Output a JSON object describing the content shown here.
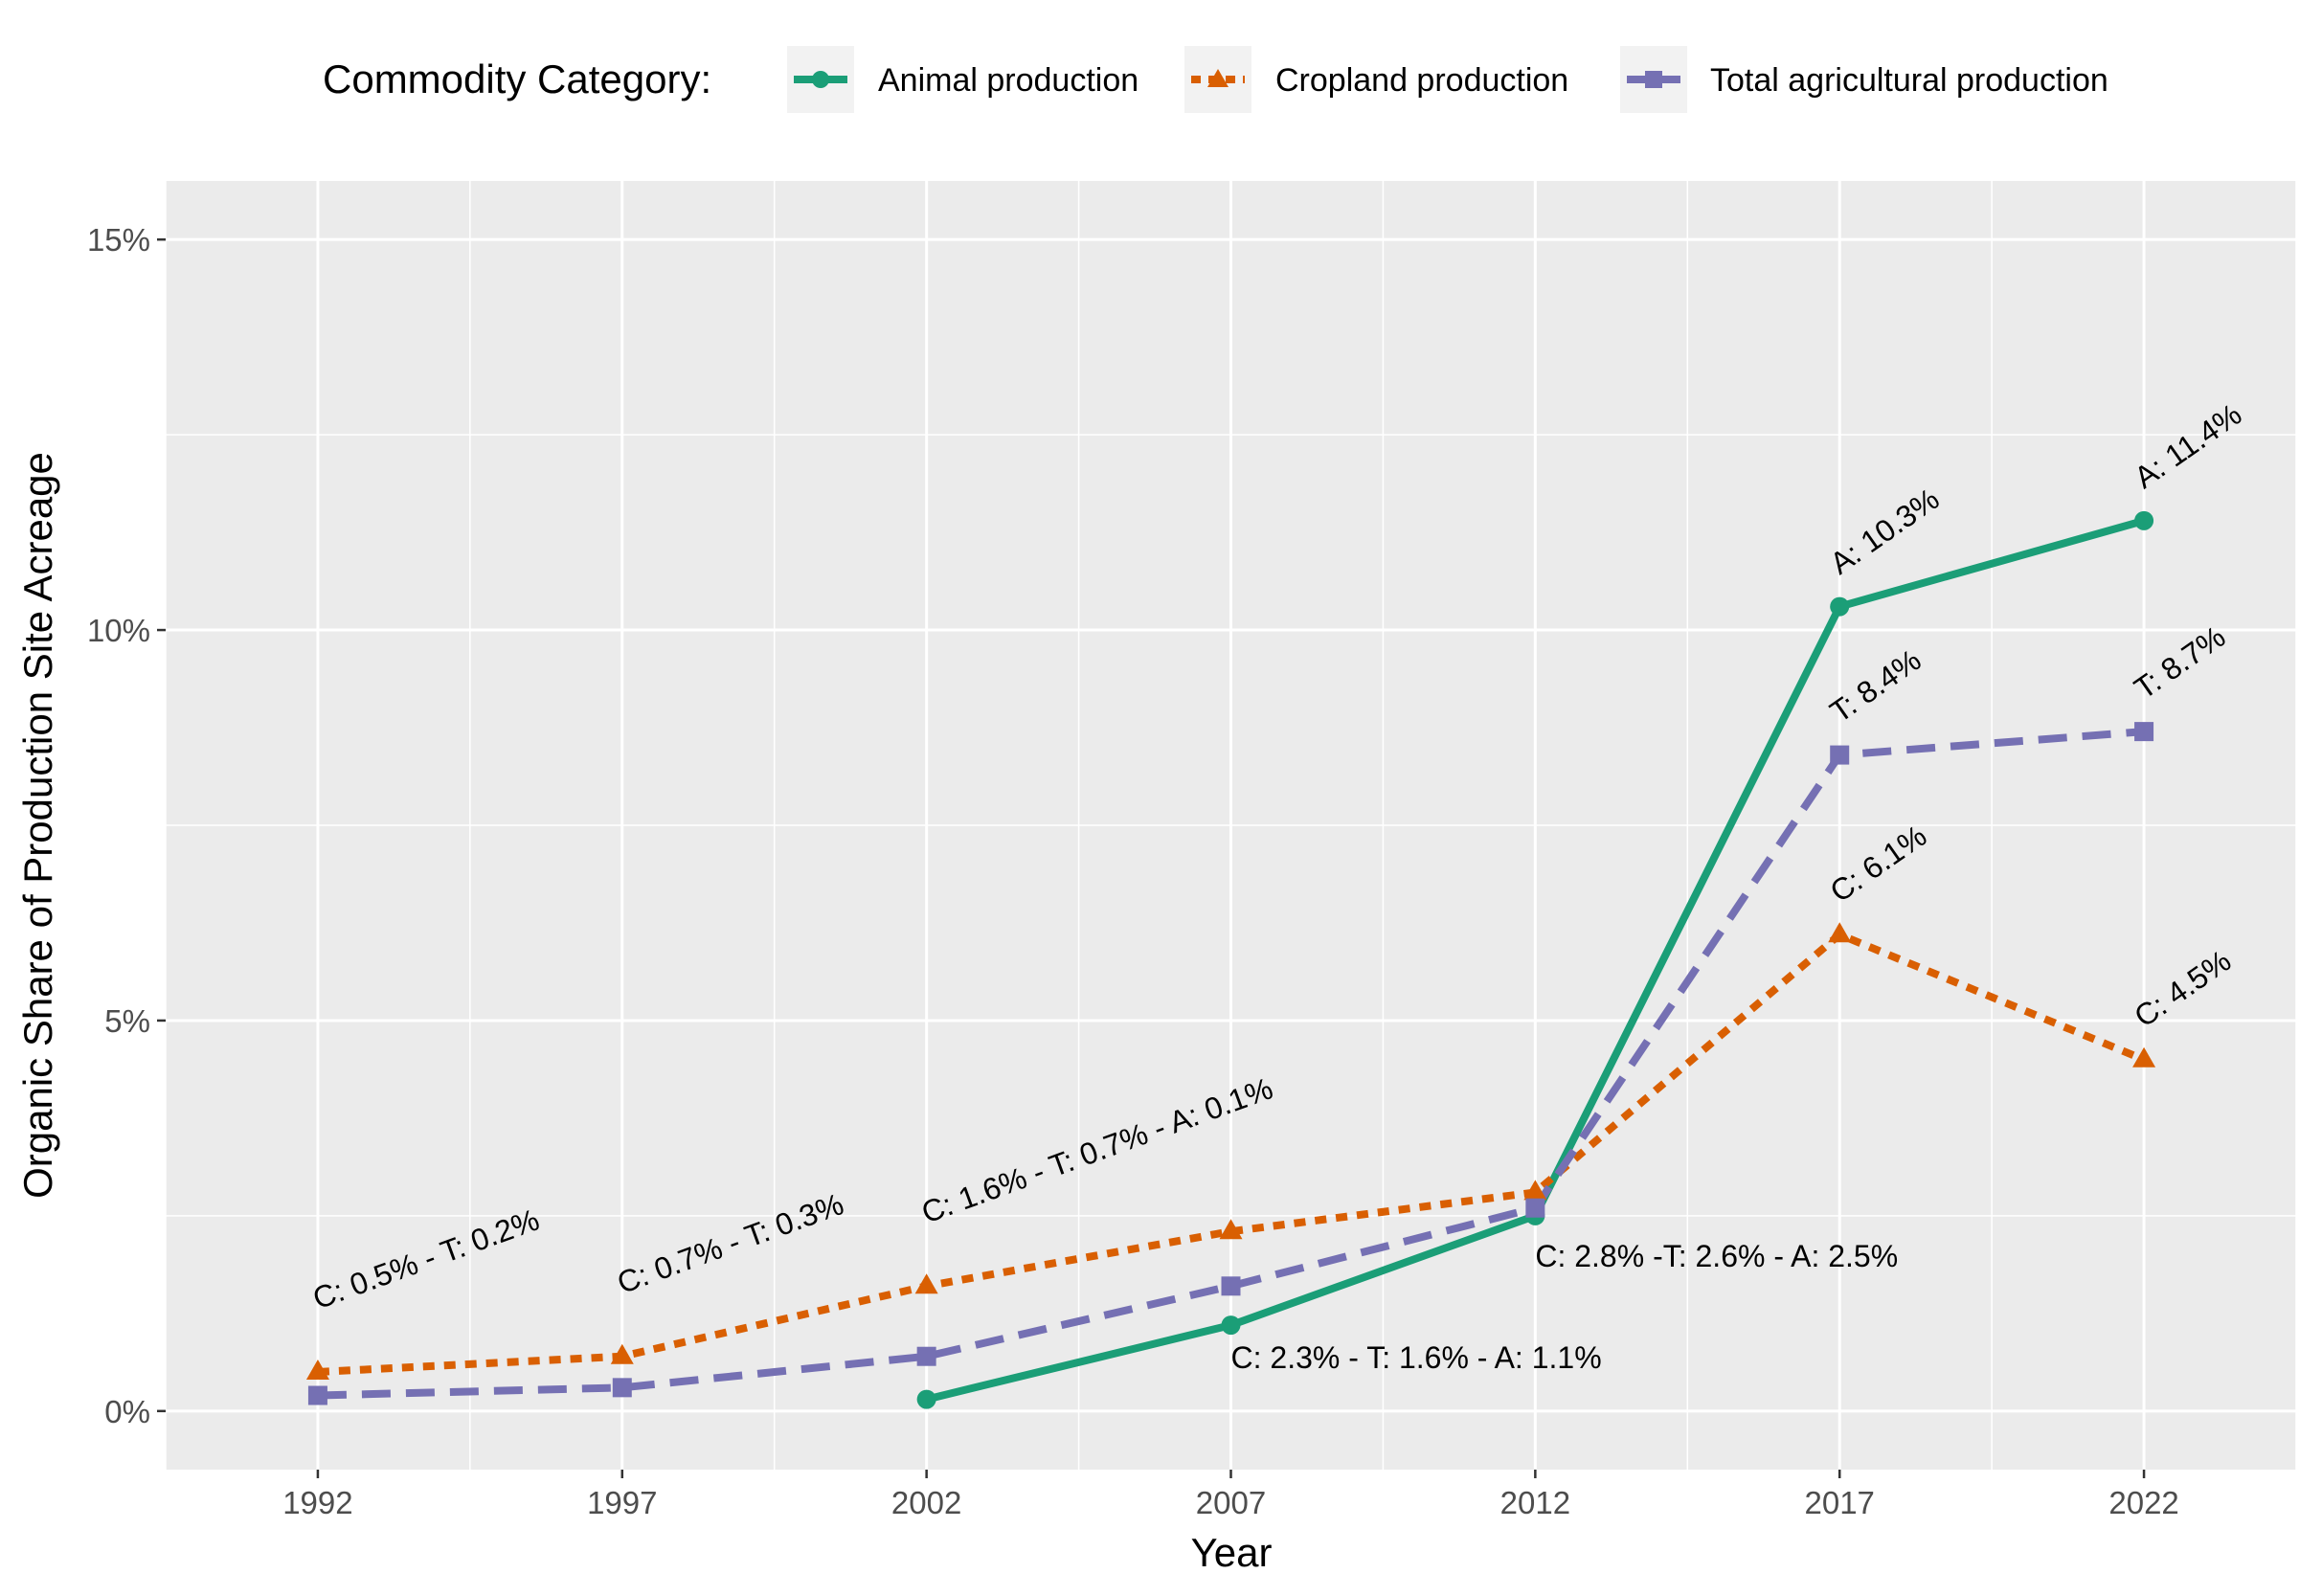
{
  "chart_data": {
    "type": "line",
    "xlabel": "Year",
    "ylabel": "Organic Share of Production Site Acreage",
    "x": [
      1992,
      1997,
      2002,
      2007,
      2012,
      2017,
      2022
    ],
    "x_tick_labels": [
      "1992",
      "1997",
      "2002",
      "2007",
      "2012",
      "2017",
      "2022"
    ],
    "y_ticks": [
      0,
      5,
      10,
      15
    ],
    "y_tick_labels": [
      "0%",
      "5%",
      "10%",
      "15%"
    ],
    "xlim": [
      1989.5,
      2024.5
    ],
    "ylim": [
      -0.75,
      15.75
    ],
    "grid": true,
    "legend": {
      "position": "top",
      "title": "Commodity Category:",
      "entries": [
        "Animal production",
        "Cropland production",
        "Total agricultural production"
      ]
    },
    "series": [
      {
        "name": "Animal production",
        "color": "#1b9e77",
        "marker": "circle",
        "linestyle": "solid",
        "values": [
          null,
          null,
          0.15,
          1.1,
          2.5,
          10.3,
          11.4
        ]
      },
      {
        "name": "Cropland production",
        "color": "#d95f02",
        "marker": "triangle",
        "linestyle": "dotted",
        "values": [
          0.5,
          0.7,
          1.6,
          2.3,
          2.8,
          6.1,
          4.5
        ]
      },
      {
        "name": "Total agricultural production",
        "color": "#7570b3",
        "marker": "square",
        "linestyle": "dashed",
        "values": [
          0.2,
          0.3,
          0.7,
          1.6,
          2.6,
          8.4,
          8.7
        ]
      }
    ],
    "annotations": [
      {
        "text": "C: 0.5% - T: 0.2%",
        "x": 1992,
        "y": 1.3,
        "angle": -20
      },
      {
        "text": "C: 0.7% - T: 0.3%",
        "x": 1997,
        "y": 1.5,
        "angle": -20
      },
      {
        "text": "C: 1.6% - T: 0.7% -  A: 0.1%",
        "x": 2002,
        "y": 2.4,
        "angle": -20
      },
      {
        "text": "C: 2.3% - T: 1.6% - A: 1.1%",
        "x": 2007,
        "y": 0.55,
        "angle": 0
      },
      {
        "text": "C: 2.8% -T: 2.6% - A: 2.5%",
        "x": 2012,
        "y": 1.85,
        "angle": 0
      },
      {
        "text": "A: 10.3%",
        "x": 2017,
        "y": 10.7,
        "angle": -35
      },
      {
        "text": "T: 8.4%",
        "x": 2017,
        "y": 8.8,
        "angle": -35
      },
      {
        "text": "C: 6.1%",
        "x": 2017,
        "y": 6.5,
        "angle": -35
      },
      {
        "text": "A: 11.4%",
        "x": 2022,
        "y": 11.8,
        "angle": -35
      },
      {
        "text": "T: 8.7%",
        "x": 2022,
        "y": 9.1,
        "angle": -35
      },
      {
        "text": "C: 4.5%",
        "x": 2022,
        "y": 4.9,
        "angle": -35
      }
    ]
  }
}
